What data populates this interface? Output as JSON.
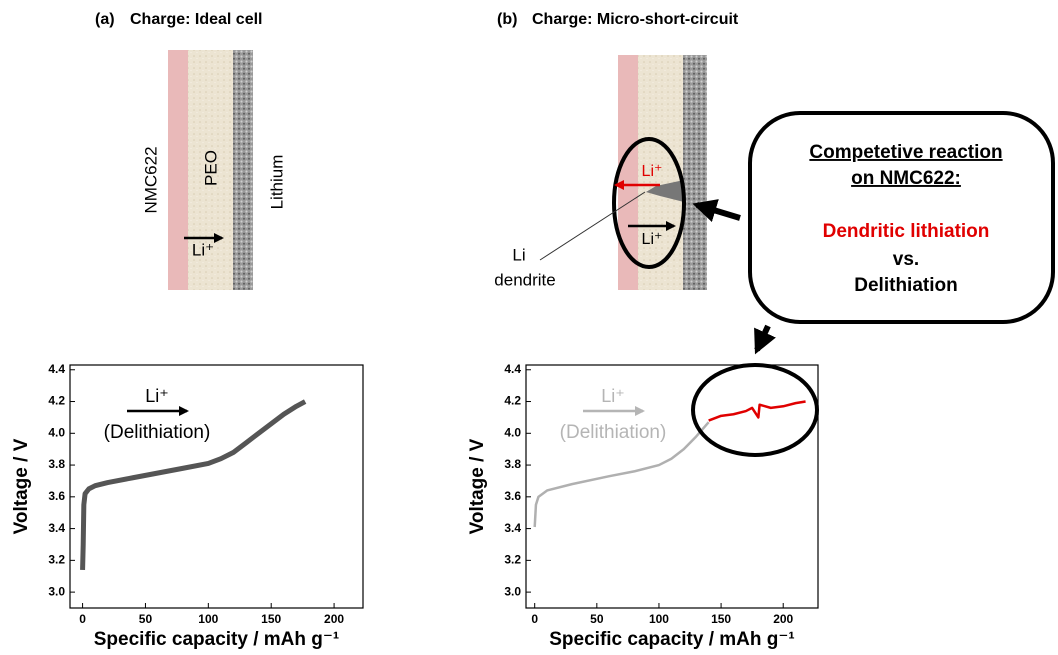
{
  "panels": [
    {
      "letter": "(a)",
      "title": "Charge: Ideal cell"
    },
    {
      "letter": "(b)",
      "title": "Charge: Micro-short-circuit"
    }
  ],
  "diagram": {
    "layers": [
      "NMC622",
      "PEO",
      "Lithium"
    ],
    "ion": "Li⁺",
    "dendrite_label": [
      "Li",
      "dendrite"
    ],
    "callout": {
      "heading": [
        "Competetive reaction",
        "on NMC622:"
      ],
      "highlight": "Dendritic lithiation",
      "connector": "vs.",
      "other": "Delithiation"
    }
  },
  "chart_data": [
    {
      "type": "line",
      "xlabel": "Specific capacity / mAh g⁻¹",
      "ylabel": "Voltage / V",
      "xlim": [
        -10,
        223
      ],
      "ylim": [
        2.9,
        4.43
      ],
      "xticks": [
        0,
        50,
        100,
        150,
        200
      ],
      "yticks": [
        {
          "value": 3,
          "label": "3.0"
        },
        3.2,
        3.4,
        3.6,
        3.8,
        {
          "value": 4,
          "label": "4.0"
        },
        4.2,
        4.4
      ],
      "annotation": {
        "arrow_label": "Li⁺",
        "text": "(Delithiation)",
        "color": "#000000"
      },
      "series": [
        {
          "color": "#555555",
          "x": [
            0,
            0.5,
            1,
            2,
            5,
            10,
            20,
            40,
            60,
            80,
            100,
            110,
            120,
            130,
            140,
            150,
            160,
            170,
            177
          ],
          "values": [
            3.14,
            3.3,
            3.55,
            3.62,
            3.65,
            3.67,
            3.69,
            3.72,
            3.75,
            3.78,
            3.81,
            3.84,
            3.88,
            3.94,
            4.0,
            4.06,
            4.12,
            4.17,
            4.2
          ]
        }
      ]
    },
    {
      "type": "line",
      "xlabel": "Specific capacity / mAh g⁻¹",
      "ylabel": "Voltage / V",
      "xlim": [
        -7,
        228
      ],
      "ylim": [
        2.9,
        4.43
      ],
      "xticks": [
        0,
        50,
        100,
        150,
        200
      ],
      "yticks": [
        {
          "value": 3,
          "label": "3.0"
        },
        3.2,
        3.4,
        3.6,
        3.8,
        {
          "value": 4,
          "label": "4.0"
        },
        4.2,
        4.4
      ],
      "annotation": {
        "arrow_label": "Li⁺",
        "text": "(Delithiation)",
        "color": "#b5b5b5"
      },
      "series": [
        {
          "color": "#b0b0b0",
          "x": [
            0,
            1,
            3,
            10,
            30,
            60,
            80,
            100,
            110,
            120,
            130,
            140
          ],
          "values": [
            3.41,
            3.55,
            3.6,
            3.64,
            3.68,
            3.73,
            3.76,
            3.8,
            3.84,
            3.9,
            3.98,
            4.07
          ]
        },
        {
          "color": "#e00000",
          "x": [
            140,
            150,
            160,
            170,
            175,
            180,
            181,
            190,
            200,
            210,
            218
          ],
          "values": [
            4.08,
            4.11,
            4.12,
            4.14,
            4.16,
            4.1,
            4.18,
            4.16,
            4.17,
            4.19,
            4.2
          ]
        }
      ]
    }
  ]
}
